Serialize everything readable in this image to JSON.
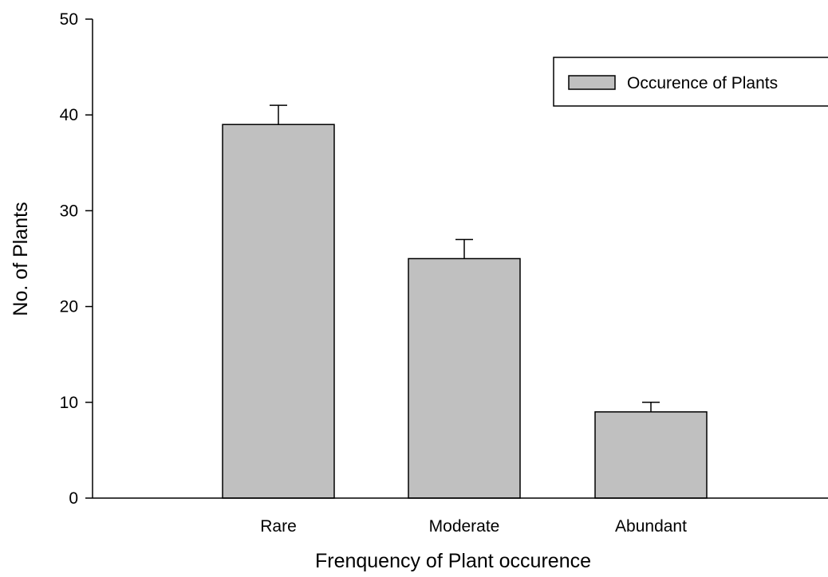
{
  "chart_data": {
    "type": "bar",
    "title": "",
    "xlabel": "Frenquency of Plant occurence",
    "ylabel": "No. of Plants",
    "categories": [
      "Rare",
      "Moderate",
      "Abundant"
    ],
    "series": [
      {
        "name": "Occurence of Plants",
        "values": [
          39,
          25,
          9
        ],
        "error_plus": [
          2,
          2,
          1
        ]
      }
    ],
    "ylim": [
      0,
      50
    ],
    "yticks": [
      0,
      10,
      20,
      30,
      40,
      50
    ],
    "grid": false,
    "legend_position": "top-right",
    "colors": {
      "bar_fill": "#c0c0c0",
      "bar_stroke": "#000000",
      "axis": "#000000"
    }
  }
}
